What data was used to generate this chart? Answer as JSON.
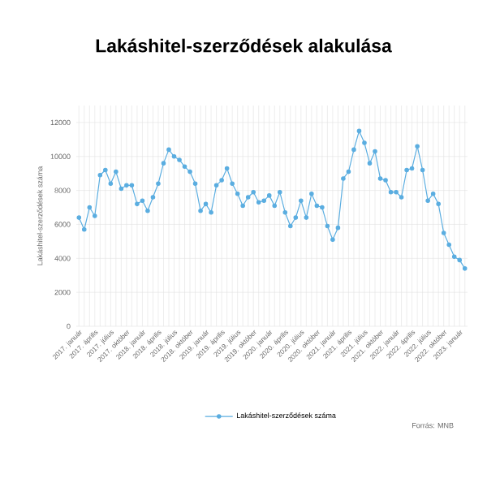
{
  "chart_data": {
    "type": "line",
    "title": "Lakáshitel-szerződések alakulása",
    "ylabel": "Lakáshitel-szerződések száma",
    "categories": [
      "2017. január",
      null,
      null,
      "2017. április",
      null,
      null,
      "2017. július",
      null,
      null,
      "2017. október",
      null,
      null,
      "2018. január",
      null,
      null,
      "2018. április",
      null,
      null,
      "2018. július",
      null,
      null,
      "2018. október",
      null,
      null,
      "2019. január",
      null,
      null,
      "2019. április",
      null,
      null,
      "2019. július",
      null,
      null,
      "2019. október",
      null,
      null,
      "2020. január",
      null,
      null,
      "2020. április",
      null,
      null,
      "2020. július",
      null,
      null,
      "2020. október",
      null,
      null,
      "2021. január",
      null,
      null,
      "2021. április",
      null,
      null,
      "2021. július",
      null,
      null,
      "2021. október",
      null,
      null,
      "2022. január",
      null,
      null,
      "2022. április",
      null,
      null,
      "2022. július",
      null,
      null,
      "2022. október",
      null,
      null,
      "2023. január",
      null
    ],
    "series": [
      {
        "name": "Lakáshitel-szerződések száma",
        "color": "#5aade0",
        "values": [
          6400,
          5700,
          7000,
          6500,
          8900,
          9200,
          8400,
          9100,
          8100,
          8300,
          8300,
          7200,
          7400,
          6800,
          7600,
          8400,
          9600,
          10400,
          10000,
          9800,
          9400,
          9100,
          8400,
          6800,
          7200,
          6700,
          8300,
          8600,
          9300,
          8400,
          7800,
          7100,
          7600,
          7900,
          7300,
          7400,
          7700,
          7100,
          7900,
          6700,
          5900,
          6400,
          7400,
          6400,
          7800,
          7100,
          7000,
          5900,
          5100,
          5800,
          8700,
          9100,
          10400,
          11500,
          10800,
          9600,
          10300,
          8700,
          8600,
          7900,
          7900,
          7600,
          9200,
          9300,
          10600,
          9200,
          7400,
          7800,
          7200,
          5500,
          4800,
          4100,
          3900,
          3400
        ]
      }
    ],
    "ylim": [
      0,
      13000
    ],
    "yticks": [
      0,
      2000,
      4000,
      6000,
      8000,
      10000,
      12000
    ],
    "grid": true,
    "marker": "circle",
    "legend": "bottom",
    "annotations": [
      "Forrás: MNB"
    ]
  }
}
